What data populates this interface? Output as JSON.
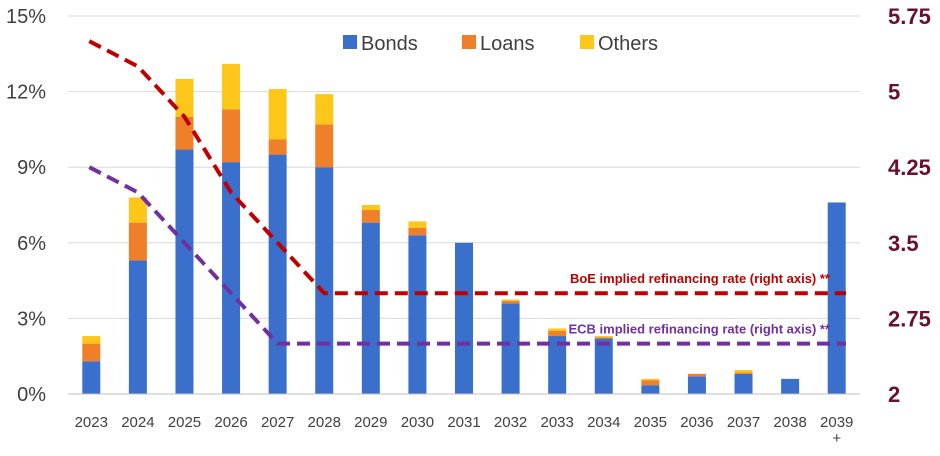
{
  "chart_data": {
    "type": "bar",
    "stacked": true,
    "categories": [
      "2023",
      "2024",
      "2025",
      "2026",
      "2027",
      "2028",
      "2029",
      "2030",
      "2031",
      "2032",
      "2033",
      "2034",
      "2035",
      "2036",
      "2037",
      "2038",
      "2039\n+"
    ],
    "series": [
      {
        "name": "Bonds",
        "color": "#3a6fcc",
        "values": [
          1.3,
          5.3,
          9.7,
          9.2,
          9.5,
          9.0,
          6.8,
          6.3,
          6.0,
          3.6,
          2.3,
          2.2,
          0.35,
          0.7,
          0.8,
          0.6,
          7.6
        ]
      },
      {
        "name": "Loans",
        "color": "#f07f2a",
        "values": [
          0.7,
          1.5,
          1.3,
          2.1,
          0.6,
          1.7,
          0.5,
          0.3,
          0.0,
          0.1,
          0.2,
          0.05,
          0.2,
          0.1,
          0.05,
          0.0,
          0.0
        ]
      },
      {
        "name": "Others",
        "color": "#fcc719",
        "values": [
          0.3,
          1.0,
          1.5,
          1.8,
          2.0,
          1.2,
          0.2,
          0.25,
          0.0,
          0.05,
          0.1,
          0.05,
          0.05,
          0.0,
          0.1,
          0.0,
          0.0
        ]
      }
    ],
    "lines": [
      {
        "name": "BoE implied refinancing rate (right axis) **",
        "color": "#c00000",
        "x": [
          "2023",
          "2024",
          "2025",
          "2026",
          "2027",
          "2028",
          "2039\n+"
        ],
        "values": [
          5.5,
          5.25,
          4.75,
          4.0,
          3.5,
          3.0,
          3.0
        ]
      },
      {
        "name": "ECB implied refinancing rate (right axis) **",
        "color": "#7030a0",
        "x": [
          "2023",
          "2024",
          "2025",
          "2026",
          "2027",
          "2039\n+"
        ],
        "values": [
          4.25,
          4.0,
          3.5,
          3.0,
          2.5,
          2.5
        ]
      }
    ],
    "y_left": {
      "ticks": [
        "0%",
        "3%",
        "6%",
        "9%",
        "12%",
        "15%"
      ],
      "ylim": [
        0,
        15
      ]
    },
    "y_right": {
      "ticks": [
        "2",
        "2.75",
        "3.5",
        "4.25",
        "5",
        "5.75"
      ],
      "ylim": [
        2,
        5.75
      ]
    },
    "legend": "top-center",
    "grid": true
  }
}
